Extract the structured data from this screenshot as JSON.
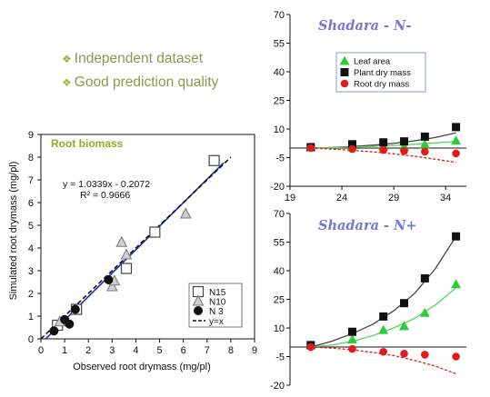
{
  "bullets": [
    {
      "text": "Independent dataset",
      "icon": "diamond-bullet-icon"
    },
    {
      "text": "Good prediction quality",
      "icon": "diamond-bullet-icon"
    }
  ],
  "chart_data": [
    {
      "type": "scatter",
      "title": "Root biomass",
      "xlabel": "Observed root drymass (mg/pl)",
      "ylabel": "Simulated root drymass (mg/pl)",
      "xlim": [
        0,
        9
      ],
      "ylim": [
        0,
        9
      ],
      "xticks": [
        "0",
        "1",
        "2",
        "3",
        "4",
        "5",
        "6",
        "7",
        "8",
        "9"
      ],
      "yticks": [
        "0",
        "1",
        "2",
        "3",
        "4",
        "5",
        "6",
        "7",
        "8",
        "9"
      ],
      "equation": "y = 1.0339x - 0.2072",
      "r2": "R² = 0.9666",
      "series": [
        {
          "name": "N15",
          "marker": "open-square",
          "color": "#444444",
          "points": [
            [
              0.7,
              0.6
            ],
            [
              1.5,
              1.3
            ],
            [
              3.6,
              3.1
            ],
            [
              4.8,
              4.7
            ],
            [
              7.3,
              7.85
            ]
          ]
        },
        {
          "name": "N10",
          "marker": "gray-triangle",
          "color": "#999999",
          "points": [
            [
              0.8,
              0.75
            ],
            [
              3.0,
              2.3
            ],
            [
              3.1,
              2.55
            ],
            [
              3.4,
              4.25
            ],
            [
              3.6,
              3.7
            ],
            [
              6.1,
              5.5
            ]
          ]
        },
        {
          "name": "N 3",
          "marker": "filled-circle",
          "color": "#111111",
          "points": [
            [
              0.55,
              0.35
            ],
            [
              1.0,
              0.85
            ],
            [
              1.2,
              0.65
            ],
            [
              1.45,
              1.3
            ],
            [
              2.85,
              2.6
            ]
          ]
        }
      ],
      "lines": [
        {
          "name": "regression",
          "color": "#1a2bd0",
          "style": "solid",
          "x": [
            0.2,
            7.7
          ]
        },
        {
          "name": "y=x",
          "color": "#111111",
          "style": "dashed",
          "x": [
            0,
            8
          ]
        }
      ],
      "legend": [
        "N15",
        "N10",
        "N 3",
        "y=x"
      ],
      "legend_position": "bottom-right"
    },
    {
      "type": "scatter",
      "title": "Shadara - N-",
      "xlim": [
        19,
        36
      ],
      "ylim": [
        -20,
        70
      ],
      "xticks": [
        "19",
        "24",
        "29",
        "34"
      ],
      "yticks": [
        "70",
        "55",
        "40",
        "25",
        "10",
        "-5",
        "-20"
      ],
      "legend": [
        "Leaf area",
        "Plant dry mass",
        "Root dry mass"
      ],
      "legend_position": "top-left",
      "series": [
        {
          "name": "Leaf area",
          "color": "#2ecb3a",
          "marker": "triangle",
          "x": [
            21,
            25,
            28,
            30,
            32,
            35
          ],
          "y": [
            0.5,
            0.5,
            1,
            1,
            2,
            4
          ]
        },
        {
          "name": "Plant dry mass",
          "color": "#111111",
          "marker": "square",
          "x": [
            21,
            25,
            28,
            30,
            32,
            35
          ],
          "y": [
            0.5,
            2,
            3,
            3.5,
            6,
            11
          ]
        },
        {
          "name": "Root dry mass",
          "color": "#e01b1b",
          "marker": "circle",
          "x": [
            21,
            25,
            28,
            30,
            32,
            35
          ],
          "y": [
            0,
            -0.5,
            -1,
            -1.5,
            -1.8,
            -2.8
          ]
        }
      ],
      "curves": [
        {
          "series": "Plant dry mass",
          "color": "#444444",
          "x": [
            21,
            23,
            25,
            27,
            29,
            31,
            33,
            35
          ],
          "y": [
            0,
            0.3,
            0.8,
            1.5,
            2.5,
            3.8,
            5.5,
            8
          ]
        },
        {
          "series": "Leaf area",
          "color": "#5cd45c",
          "x": [
            21,
            23,
            25,
            27,
            29,
            31,
            33,
            35
          ],
          "y": [
            0,
            0.2,
            0.5,
            0.9,
            1.4,
            2.0,
            2.7,
            3.5
          ]
        },
        {
          "series": "Root dry mass",
          "color": "#e01b1b",
          "style": "dashed",
          "x": [
            21,
            23,
            25,
            27,
            29,
            31,
            33,
            35
          ],
          "y": [
            0,
            -0.5,
            -1.2,
            -2,
            -3,
            -4.3,
            -5.8,
            -7.5
          ]
        }
      ]
    },
    {
      "type": "scatter",
      "title": "Shadara - N+",
      "xlim": [
        19,
        36
      ],
      "ylim": [
        -20,
        70
      ],
      "yticks": [
        "70",
        "55",
        "40",
        "25",
        "10",
        "-5",
        "-20"
      ],
      "series": [
        {
          "name": "Leaf area",
          "color": "#2ecb3a",
          "marker": "triangle",
          "x": [
            21,
            25,
            28,
            30,
            32,
            35
          ],
          "y": [
            1,
            4,
            9,
            11,
            18,
            33
          ]
        },
        {
          "name": "Plant dry mass",
          "color": "#111111",
          "marker": "square",
          "x": [
            21,
            25,
            28,
            30,
            32,
            35
          ],
          "y": [
            1,
            8,
            16,
            23,
            36,
            58
          ]
        },
        {
          "name": "Root dry mass",
          "color": "#e01b1b",
          "marker": "circle",
          "x": [
            21,
            25,
            28,
            30,
            32,
            35
          ],
          "y": [
            0,
            -1,
            -2.5,
            -3.5,
            -4,
            -5
          ]
        }
      ],
      "curves": [
        {
          "series": "Plant dry mass",
          "color": "#444444",
          "x": [
            21,
            23,
            25,
            27,
            29,
            31,
            33,
            35
          ],
          "y": [
            0,
            3,
            7,
            12,
            19,
            28,
            41,
            58
          ]
        },
        {
          "series": "Leaf area",
          "color": "#5cd45c",
          "x": [
            21,
            23,
            25,
            27,
            29,
            31,
            33,
            35
          ],
          "y": [
            0,
            1,
            3,
            6,
            10,
            15,
            22,
            31
          ]
        },
        {
          "series": "Root dry mass",
          "color": "#e01b1b",
          "style": "dashed",
          "x": [
            21,
            23,
            25,
            27,
            29,
            31,
            33,
            35
          ],
          "y": [
            0,
            -0.5,
            -1.5,
            -2.8,
            -4.5,
            -7,
            -10,
            -14
          ]
        }
      ]
    }
  ]
}
